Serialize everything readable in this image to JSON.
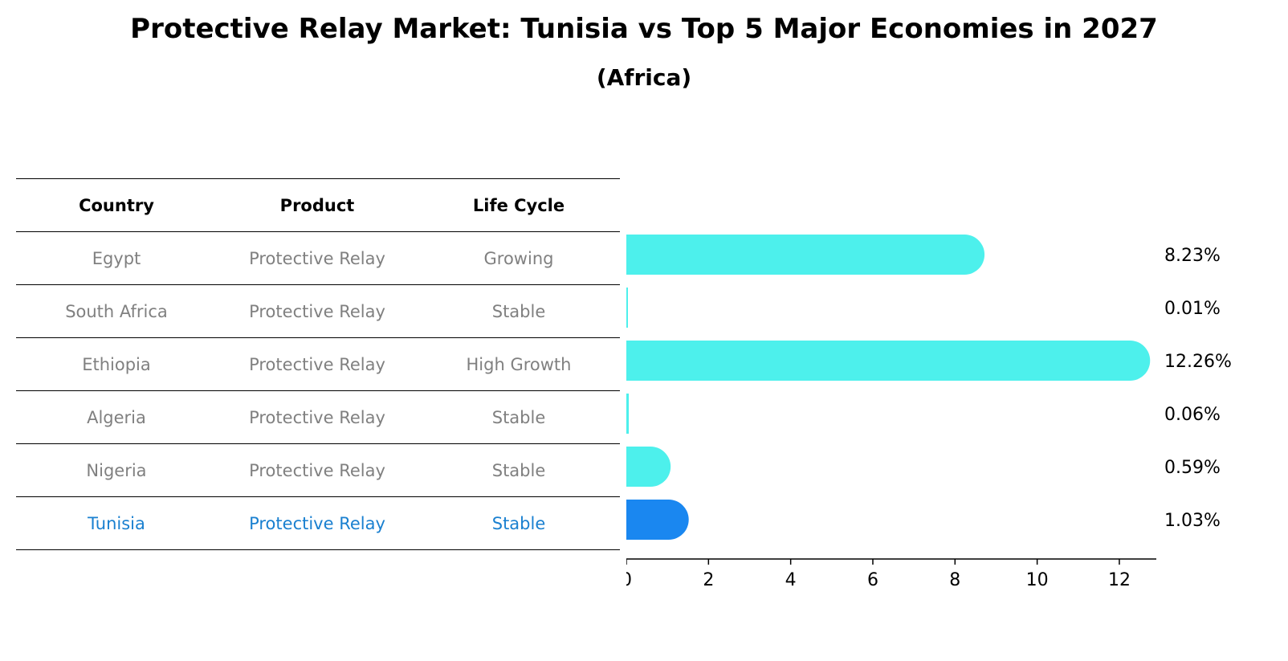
{
  "title": "Protective Relay Market: Tunisia vs Top 5 Major Economies in 2027",
  "subtitle": "(Africa)",
  "table": {
    "headers": [
      "Country",
      "Product",
      "Life Cycle"
    ],
    "rows": [
      [
        "Egypt",
        "Protective Relay",
        "Growing"
      ],
      [
        "South Africa",
        "Protective Relay",
        "Stable"
      ],
      [
        "Ethiopia",
        "Protective Relay",
        "High Growth"
      ],
      [
        "Algeria",
        "Protective Relay",
        "Stable"
      ],
      [
        "Nigeria",
        "Protective Relay",
        "Stable"
      ],
      [
        "Tunisia",
        "Protective Relay",
        "Stable"
      ]
    ]
  },
  "chart_data": {
    "type": "bar",
    "orientation": "horizontal",
    "categories": [
      "Egypt",
      "South Africa",
      "Ethiopia",
      "Algeria",
      "Nigeria",
      "Tunisia"
    ],
    "values": [
      8.23,
      0.01,
      12.26,
      0.06,
      0.59,
      1.03
    ],
    "value_labels": [
      "8.23%",
      "0.01%",
      "12.26%",
      "0.06%",
      "0.59%",
      "1.03%"
    ],
    "highlight": "Tunisia",
    "xlim": [
      0,
      12.9
    ],
    "xticks": [
      0,
      2,
      4,
      6,
      8,
      10,
      12
    ],
    "grid": false,
    "colors": {
      "default": "#4df0ec",
      "highlight": "#1a87f0"
    }
  }
}
